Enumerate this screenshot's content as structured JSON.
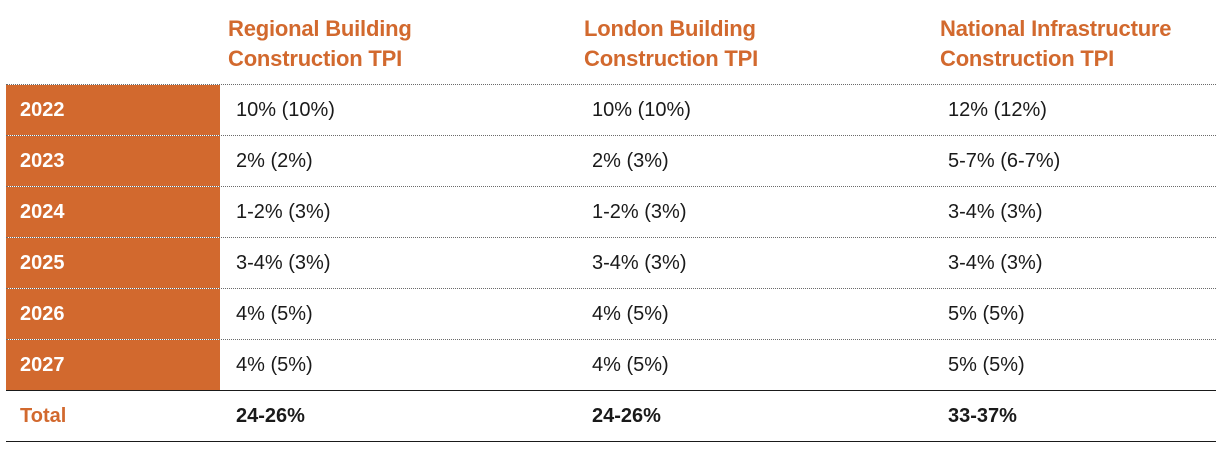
{
  "headers": [
    {
      "line1": "Regional Building",
      "line2": "Construction TPI"
    },
    {
      "line1": "London Building",
      "line2": "Construction TPI"
    },
    {
      "line1": "National Infrastructure",
      "line2": "Construction TPI"
    }
  ],
  "rows": [
    {
      "year": "2022",
      "values": [
        "10% (10%)",
        "10% (10%)",
        "12% (12%)"
      ]
    },
    {
      "year": "2023",
      "values": [
        "2% (2%)",
        "2% (3%)",
        "5-7% (6-7%)"
      ]
    },
    {
      "year": "2024",
      "values": [
        "1-2% (3%)",
        "1-2% (3%)",
        "3-4% (3%)"
      ]
    },
    {
      "year": "2025",
      "values": [
        "3-4% (3%)",
        "3-4% (3%)",
        "3-4% (3%)"
      ]
    },
    {
      "year": "2026",
      "values": [
        "4% (5%)",
        "4% (5%)",
        "5% (5%)"
      ]
    },
    {
      "year": "2027",
      "values": [
        "4% (5%)",
        "4% (5%)",
        "5% (5%)"
      ]
    }
  ],
  "total": {
    "label": "Total",
    "values": [
      "24-26%",
      "24-26%",
      "33-37%"
    ]
  },
  "colors": {
    "accent": "#d2692e",
    "text": "#1a1a1a"
  }
}
